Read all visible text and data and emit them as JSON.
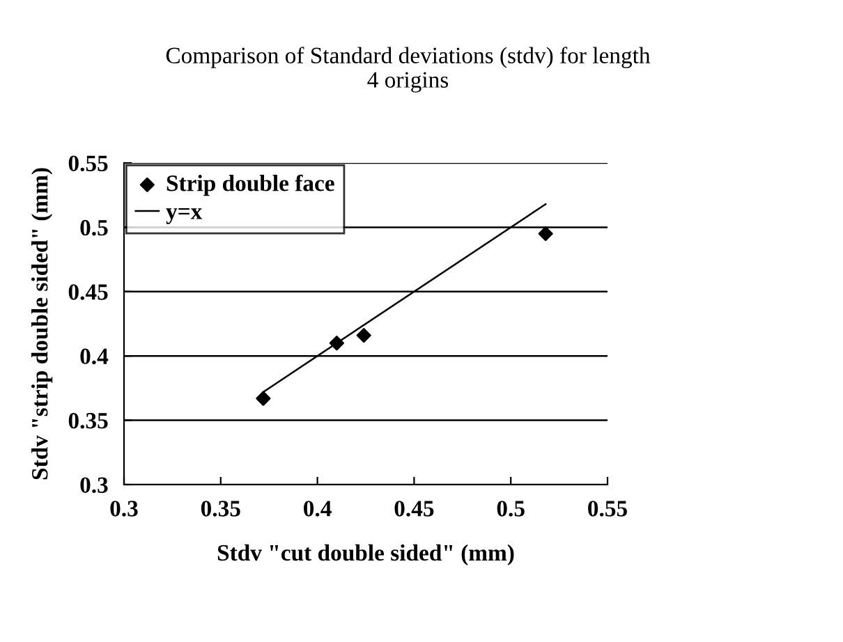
{
  "chart_data": {
    "type": "scatter",
    "title": "Comparison of Standard deviations (stdv) for length\n4 origins",
    "xlabel": "Stdv \"cut double sided\" (mm)",
    "ylabel": "Stdv \"strip double sided\" (mm)",
    "series": [
      {
        "name": "Strip double face",
        "color": "#000000",
        "marker": "diamond",
        "x": [
          0.372,
          0.41,
          0.424,
          0.518
        ],
        "values": [
          0.367,
          0.41,
          0.416,
          0.495
        ]
      },
      {
        "name": "y=x",
        "type": "line",
        "color": "#000000",
        "marker": "none",
        "x": [
          0.372,
          0.518
        ],
        "values": [
          0.372,
          0.518
        ]
      }
    ],
    "xlim": [
      0.3,
      0.55
    ],
    "xticks": [
      0.3,
      0.35,
      0.4,
      0.45,
      0.5,
      0.55
    ],
    "ylim": [
      0.3,
      0.55
    ],
    "yticks": [
      0.3,
      0.35,
      0.4,
      0.45,
      0.5,
      0.55
    ],
    "grid": "y",
    "legend": "top left"
  }
}
